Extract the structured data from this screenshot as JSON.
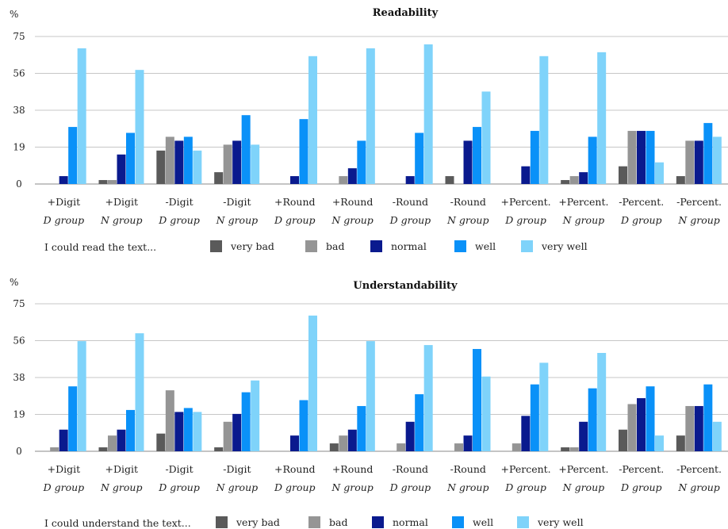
{
  "colors": {
    "very_bad": "#5a5a5a",
    "bad": "#959595",
    "normal": "#0a1a8e",
    "well": "#0a91f8",
    "very_well": "#7fd3fa"
  },
  "chart_data": [
    {
      "type": "bar",
      "title": "Readability",
      "ylabel": "%",
      "yticks": [
        "0",
        "19",
        "38",
        "56",
        "75"
      ],
      "ylim": [
        0,
        75
      ],
      "grid": true,
      "legend_prompt": "I could read the text...",
      "legend_position": "bottom",
      "categories": [
        {
          "top": "+Digit",
          "bottom": "D group"
        },
        {
          "top": "+Digit",
          "bottom": "N group"
        },
        {
          "top": "-Digit",
          "bottom": "D group"
        },
        {
          "top": "-Digit",
          "bottom": "N group"
        },
        {
          "top": "+Round",
          "bottom": "D group"
        },
        {
          "top": "+Round",
          "bottom": "N group"
        },
        {
          "top": "-Round",
          "bottom": "D group"
        },
        {
          "top": "-Round",
          "bottom": "N group"
        },
        {
          "top": "+Percent.",
          "bottom": "D group"
        },
        {
          "top": "+Percent.",
          "bottom": "N group"
        },
        {
          "top": "-Percent.",
          "bottom": "D group"
        },
        {
          "top": "-Percent.",
          "bottom": "N group"
        }
      ],
      "series": [
        {
          "name": "very bad",
          "key": "very_bad",
          "values": [
            0,
            2,
            17,
            6,
            0,
            0,
            0,
            4,
            0,
            2,
            9,
            4
          ]
        },
        {
          "name": "bad",
          "key": "bad",
          "values": [
            0,
            2,
            24,
            20,
            0,
            4,
            0,
            0,
            0,
            4,
            27,
            22
          ]
        },
        {
          "name": "normal",
          "key": "normal",
          "values": [
            4,
            15,
            22,
            22,
            4,
            8,
            4,
            22,
            9,
            6,
            27,
            22
          ]
        },
        {
          "name": "well",
          "key": "well",
          "values": [
            29,
            26,
            24,
            35,
            33,
            22,
            26,
            29,
            27,
            24,
            27,
            31
          ]
        },
        {
          "name": "very well",
          "key": "very_well",
          "values": [
            69,
            58,
            17,
            20,
            65,
            69,
            71,
            47,
            65,
            67,
            11,
            24
          ]
        }
      ]
    },
    {
      "type": "bar",
      "title": "Understandability",
      "ylabel": "%",
      "yticks": [
        "0",
        "19",
        "38",
        "56",
        "75"
      ],
      "ylim": [
        0,
        75
      ],
      "grid": true,
      "legend_prompt": "I could understand the text...",
      "legend_position": "bottom",
      "categories": [
        {
          "top": "+Digit",
          "bottom": "D group"
        },
        {
          "top": "+Digit",
          "bottom": "N group"
        },
        {
          "top": "-Digit",
          "bottom": "D group"
        },
        {
          "top": "-Digit",
          "bottom": "N group"
        },
        {
          "top": "+Round",
          "bottom": "D group"
        },
        {
          "top": "+Round",
          "bottom": "N group"
        },
        {
          "top": "-Round",
          "bottom": "D group"
        },
        {
          "top": "-Round",
          "bottom": "N group"
        },
        {
          "top": "+Percent.",
          "bottom": "D group"
        },
        {
          "top": "+Percent.",
          "bottom": "N group"
        },
        {
          "top": "-Percent.",
          "bottom": "D group"
        },
        {
          "top": "-Percent.",
          "bottom": "N group"
        }
      ],
      "series": [
        {
          "name": "very bad",
          "key": "very_bad",
          "values": [
            0,
            2,
            9,
            2,
            0,
            4,
            0,
            0,
            0,
            2,
            11,
            8
          ]
        },
        {
          "name": "bad",
          "key": "bad",
          "values": [
            2,
            8,
            31,
            15,
            0,
            8,
            4,
            4,
            4,
            2,
            24,
            23
          ]
        },
        {
          "name": "normal",
          "key": "normal",
          "values": [
            11,
            11,
            20,
            19,
            8,
            11,
            15,
            8,
            18,
            15,
            27,
            23
          ]
        },
        {
          "name": "well",
          "key": "well",
          "values": [
            33,
            21,
            22,
            30,
            26,
            23,
            29,
            52,
            34,
            32,
            33,
            34
          ]
        },
        {
          "name": "very well",
          "key": "very_well",
          "values": [
            56,
            60,
            20,
            36,
            69,
            56,
            54,
            38,
            45,
            50,
            8,
            15
          ]
        }
      ]
    }
  ]
}
